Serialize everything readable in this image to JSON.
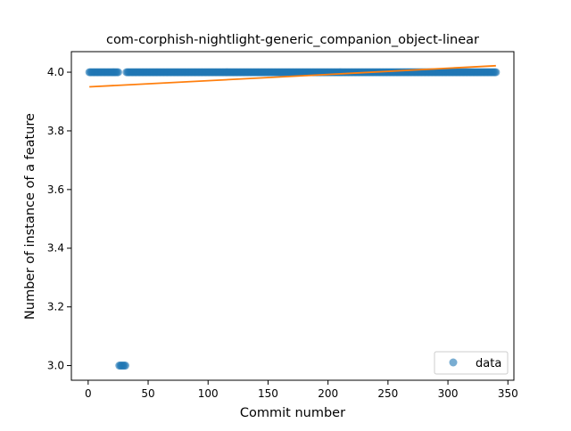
{
  "chart_data": {
    "type": "scatter",
    "title": "com-corphish-nightlight-generic_companion_object-linear",
    "xlabel": "Commit number",
    "ylabel": "Number of instance of a feature",
    "xlim": [
      -14,
      355
    ],
    "ylim": [
      2.95,
      4.07
    ],
    "xticks": [
      0,
      50,
      100,
      150,
      200,
      250,
      300,
      350
    ],
    "yticks": [
      3.0,
      3.2,
      3.4,
      3.6,
      3.8,
      4.0
    ],
    "xtick_labels": [
      "0",
      "50",
      "100",
      "150",
      "200",
      "250",
      "300",
      "350"
    ],
    "ytick_labels": [
      "3.0",
      "3.2",
      "3.4",
      "3.6",
      "3.8",
      "4.0"
    ],
    "grid": false,
    "legend_position": "lower right",
    "series": [
      {
        "name": "data",
        "kind": "scatter",
        "color": "#1f77b4",
        "alpha": 0.6,
        "x_range": [
          1,
          340
        ],
        "y": 4.0,
        "exceptions": [
          {
            "x_range": [
              26,
              31
            ],
            "y": 3.0
          }
        ]
      },
      {
        "kind": "line",
        "color": "#ff7f0e",
        "x": [
          1,
          340
        ],
        "y": [
          3.95,
          4.022
        ]
      }
    ],
    "legend": [
      {
        "label": "data",
        "marker": "circle",
        "color": "#1f77b4"
      }
    ]
  }
}
